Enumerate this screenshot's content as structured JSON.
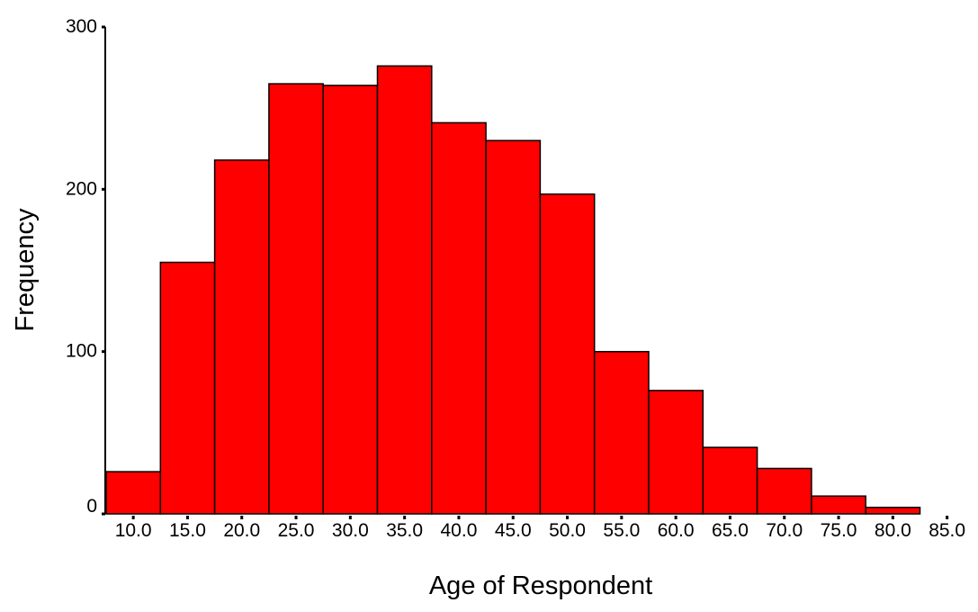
{
  "chart_data": {
    "type": "bar",
    "title": "",
    "xlabel": "Age of Respondent",
    "ylabel": "Frequency",
    "categories": [
      "10.0",
      "15.0",
      "20.0",
      "25.0",
      "30.0",
      "35.0",
      "40.0",
      "45.0",
      "50.0",
      "55.0",
      "60.0",
      "65.0",
      "70.0",
      "75.0",
      "80.0",
      "85.0"
    ],
    "values": [
      26,
      155,
      218,
      265,
      264,
      276,
      241,
      230,
      197,
      100,
      76,
      41,
      28,
      11,
      4,
      0
    ],
    "ylim": [
      0,
      300
    ],
    "yticks": [
      "0",
      "100",
      "200",
      "300"
    ],
    "grid": false,
    "legend": "none",
    "bar_color": "#ff0000",
    "edge_color": "#000000"
  }
}
